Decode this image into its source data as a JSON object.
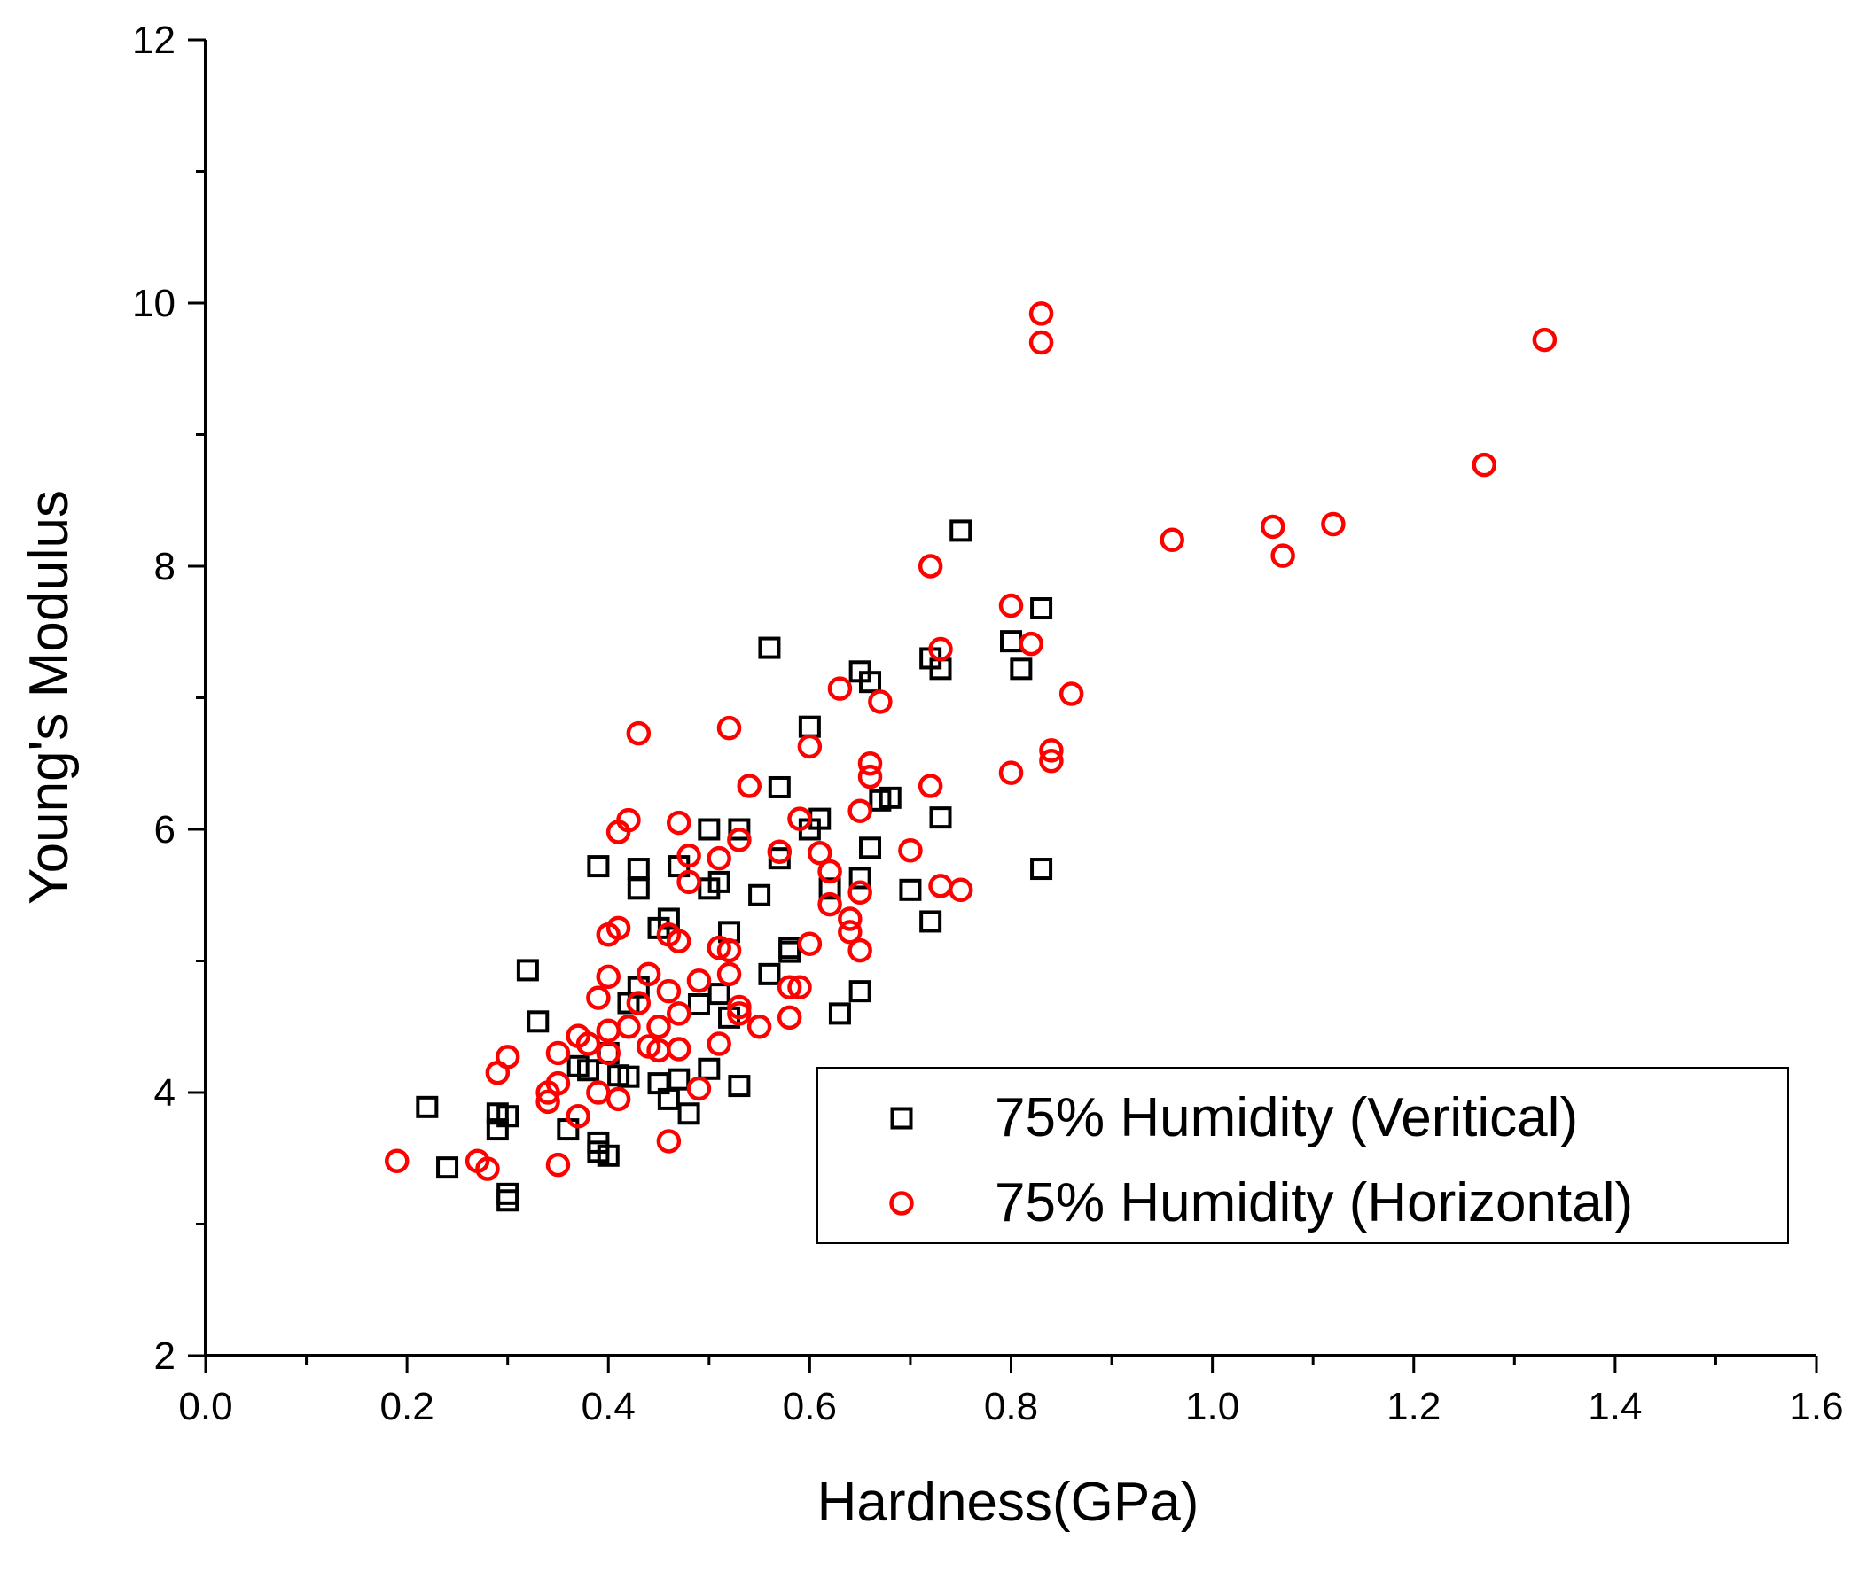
{
  "chart_data": {
    "type": "scatter",
    "title": "",
    "xlabel": "Hardness(GPa)",
    "ylabel": "Young's Modulus",
    "xlim": [
      0.0,
      1.6
    ],
    "ylim": [
      2,
      12
    ],
    "x_ticks": [
      0.0,
      0.2,
      0.4,
      0.6,
      0.8,
      1.0,
      1.2,
      1.4,
      1.6
    ],
    "x_tick_labels": [
      "0.0",
      "0.2",
      "0.4",
      "0.6",
      "0.8",
      "1.0",
      "1.2",
      "1.4",
      "1.6"
    ],
    "y_ticks": [
      2,
      4,
      6,
      8,
      10,
      12
    ],
    "y_tick_labels": [
      "2",
      "4",
      "6",
      "8",
      "10",
      "12"
    ],
    "grid": false,
    "legend_position": "center-right",
    "series": [
      {
        "name": "75% Humidity (Veritical)",
        "marker": "square",
        "color": "#000000",
        "points": [
          [
            0.22,
            3.89
          ],
          [
            0.24,
            3.43
          ],
          [
            0.29,
            3.84
          ],
          [
            0.29,
            3.72
          ],
          [
            0.3,
            3.82
          ],
          [
            0.3,
            3.23
          ],
          [
            0.3,
            3.18
          ],
          [
            0.32,
            4.93
          ],
          [
            0.33,
            4.54
          ],
          [
            0.36,
            3.72
          ],
          [
            0.37,
            4.2
          ],
          [
            0.38,
            4.17
          ],
          [
            0.39,
            3.55
          ],
          [
            0.39,
            3.62
          ],
          [
            0.4,
            3.52
          ],
          [
            0.39,
            5.72
          ],
          [
            0.4,
            4.3
          ],
          [
            0.41,
            4.13
          ],
          [
            0.42,
            4.12
          ],
          [
            0.42,
            4.68
          ],
          [
            0.43,
            4.8
          ],
          [
            0.43,
            5.55
          ],
          [
            0.43,
            5.7
          ],
          [
            0.45,
            4.07
          ],
          [
            0.45,
            5.25
          ],
          [
            0.46,
            5.32
          ],
          [
            0.46,
            3.95
          ],
          [
            0.47,
            5.72
          ],
          [
            0.47,
            4.1
          ],
          [
            0.48,
            3.84
          ],
          [
            0.49,
            4.67
          ],
          [
            0.5,
            4.18
          ],
          [
            0.5,
            6.0
          ],
          [
            0.5,
            5.55
          ],
          [
            0.51,
            4.75
          ],
          [
            0.51,
            5.6
          ],
          [
            0.52,
            5.22
          ],
          [
            0.52,
            4.57
          ],
          [
            0.53,
            6.0
          ],
          [
            0.53,
            4.05
          ],
          [
            0.55,
            5.5
          ],
          [
            0.56,
            7.38
          ],
          [
            0.56,
            4.9
          ],
          [
            0.57,
            6.32
          ],
          [
            0.57,
            5.78
          ],
          [
            0.58,
            5.07
          ],
          [
            0.58,
            5.1
          ],
          [
            0.6,
            6.78
          ],
          [
            0.6,
            6.0
          ],
          [
            0.61,
            6.08
          ],
          [
            0.62,
            5.55
          ],
          [
            0.63,
            4.6
          ],
          [
            0.65,
            5.63
          ],
          [
            0.65,
            4.77
          ],
          [
            0.65,
            7.2
          ],
          [
            0.66,
            7.12
          ],
          [
            0.66,
            5.86
          ],
          [
            0.67,
            6.22
          ],
          [
            0.68,
            6.24
          ],
          [
            0.7,
            5.54
          ],
          [
            0.72,
            7.3
          ],
          [
            0.72,
            5.3
          ],
          [
            0.73,
            6.09
          ],
          [
            0.73,
            7.22
          ],
          [
            0.75,
            8.27
          ],
          [
            0.8,
            7.43
          ],
          [
            0.81,
            7.22
          ],
          [
            0.83,
            7.68
          ],
          [
            0.83,
            5.7
          ]
        ]
      },
      {
        "name": "75% Humidity (Horizontal)",
        "marker": "circle",
        "color": "#ff0000",
        "points": [
          [
            0.19,
            3.48
          ],
          [
            0.27,
            3.48
          ],
          [
            0.28,
            3.42
          ],
          [
            0.29,
            4.15
          ],
          [
            0.3,
            4.27
          ],
          [
            0.34,
            4.0
          ],
          [
            0.34,
            3.93
          ],
          [
            0.35,
            3.45
          ],
          [
            0.35,
            4.07
          ],
          [
            0.35,
            4.3
          ],
          [
            0.37,
            3.82
          ],
          [
            0.37,
            4.43
          ],
          [
            0.38,
            4.37
          ],
          [
            0.39,
            4.0
          ],
          [
            0.39,
            4.72
          ],
          [
            0.4,
            5.2
          ],
          [
            0.4,
            4.47
          ],
          [
            0.4,
            4.3
          ],
          [
            0.4,
            4.88
          ],
          [
            0.41,
            5.25
          ],
          [
            0.41,
            3.95
          ],
          [
            0.41,
            5.98
          ],
          [
            0.42,
            6.07
          ],
          [
            0.42,
            4.5
          ],
          [
            0.43,
            4.68
          ],
          [
            0.43,
            6.73
          ],
          [
            0.44,
            4.9
          ],
          [
            0.44,
            4.35
          ],
          [
            0.45,
            4.32
          ],
          [
            0.45,
            4.5
          ],
          [
            0.46,
            4.77
          ],
          [
            0.46,
            5.2
          ],
          [
            0.47,
            5.15
          ],
          [
            0.47,
            4.6
          ],
          [
            0.47,
            4.33
          ],
          [
            0.46,
            3.63
          ],
          [
            0.47,
            6.05
          ],
          [
            0.48,
            5.6
          ],
          [
            0.48,
            5.8
          ],
          [
            0.49,
            4.85
          ],
          [
            0.49,
            4.03
          ],
          [
            0.51,
            4.37
          ],
          [
            0.51,
            5.1
          ],
          [
            0.51,
            5.78
          ],
          [
            0.52,
            5.08
          ],
          [
            0.52,
            6.77
          ],
          [
            0.52,
            4.9
          ],
          [
            0.53,
            5.92
          ],
          [
            0.53,
            4.65
          ],
          [
            0.53,
            4.6
          ],
          [
            0.54,
            6.33
          ],
          [
            0.55,
            4.5
          ],
          [
            0.57,
            5.83
          ],
          [
            0.58,
            4.57
          ],
          [
            0.58,
            4.8
          ],
          [
            0.59,
            4.8
          ],
          [
            0.59,
            6.08
          ],
          [
            0.6,
            6.63
          ],
          [
            0.6,
            5.13
          ],
          [
            0.61,
            5.82
          ],
          [
            0.62,
            5.68
          ],
          [
            0.62,
            5.43
          ],
          [
            0.63,
            7.07
          ],
          [
            0.64,
            5.32
          ],
          [
            0.64,
            5.22
          ],
          [
            0.65,
            6.14
          ],
          [
            0.65,
            5.52
          ],
          [
            0.65,
            5.08
          ],
          [
            0.66,
            6.4
          ],
          [
            0.66,
            6.5
          ],
          [
            0.67,
            6.97
          ],
          [
            0.7,
            5.84
          ],
          [
            0.72,
            8.0
          ],
          [
            0.72,
            6.33
          ],
          [
            0.73,
            7.37
          ],
          [
            0.73,
            5.57
          ],
          [
            0.75,
            5.54
          ],
          [
            0.8,
            7.7
          ],
          [
            0.8,
            6.43
          ],
          [
            0.82,
            7.41
          ],
          [
            0.83,
            9.7
          ],
          [
            0.83,
            9.92
          ],
          [
            0.84,
            6.52
          ],
          [
            0.84,
            6.6
          ],
          [
            0.86,
            7.03
          ],
          [
            0.96,
            8.2
          ],
          [
            1.06,
            8.3
          ],
          [
            1.07,
            8.08
          ],
          [
            1.12,
            8.32
          ],
          [
            1.27,
            8.77
          ],
          [
            1.33,
            9.72
          ]
        ]
      }
    ]
  }
}
